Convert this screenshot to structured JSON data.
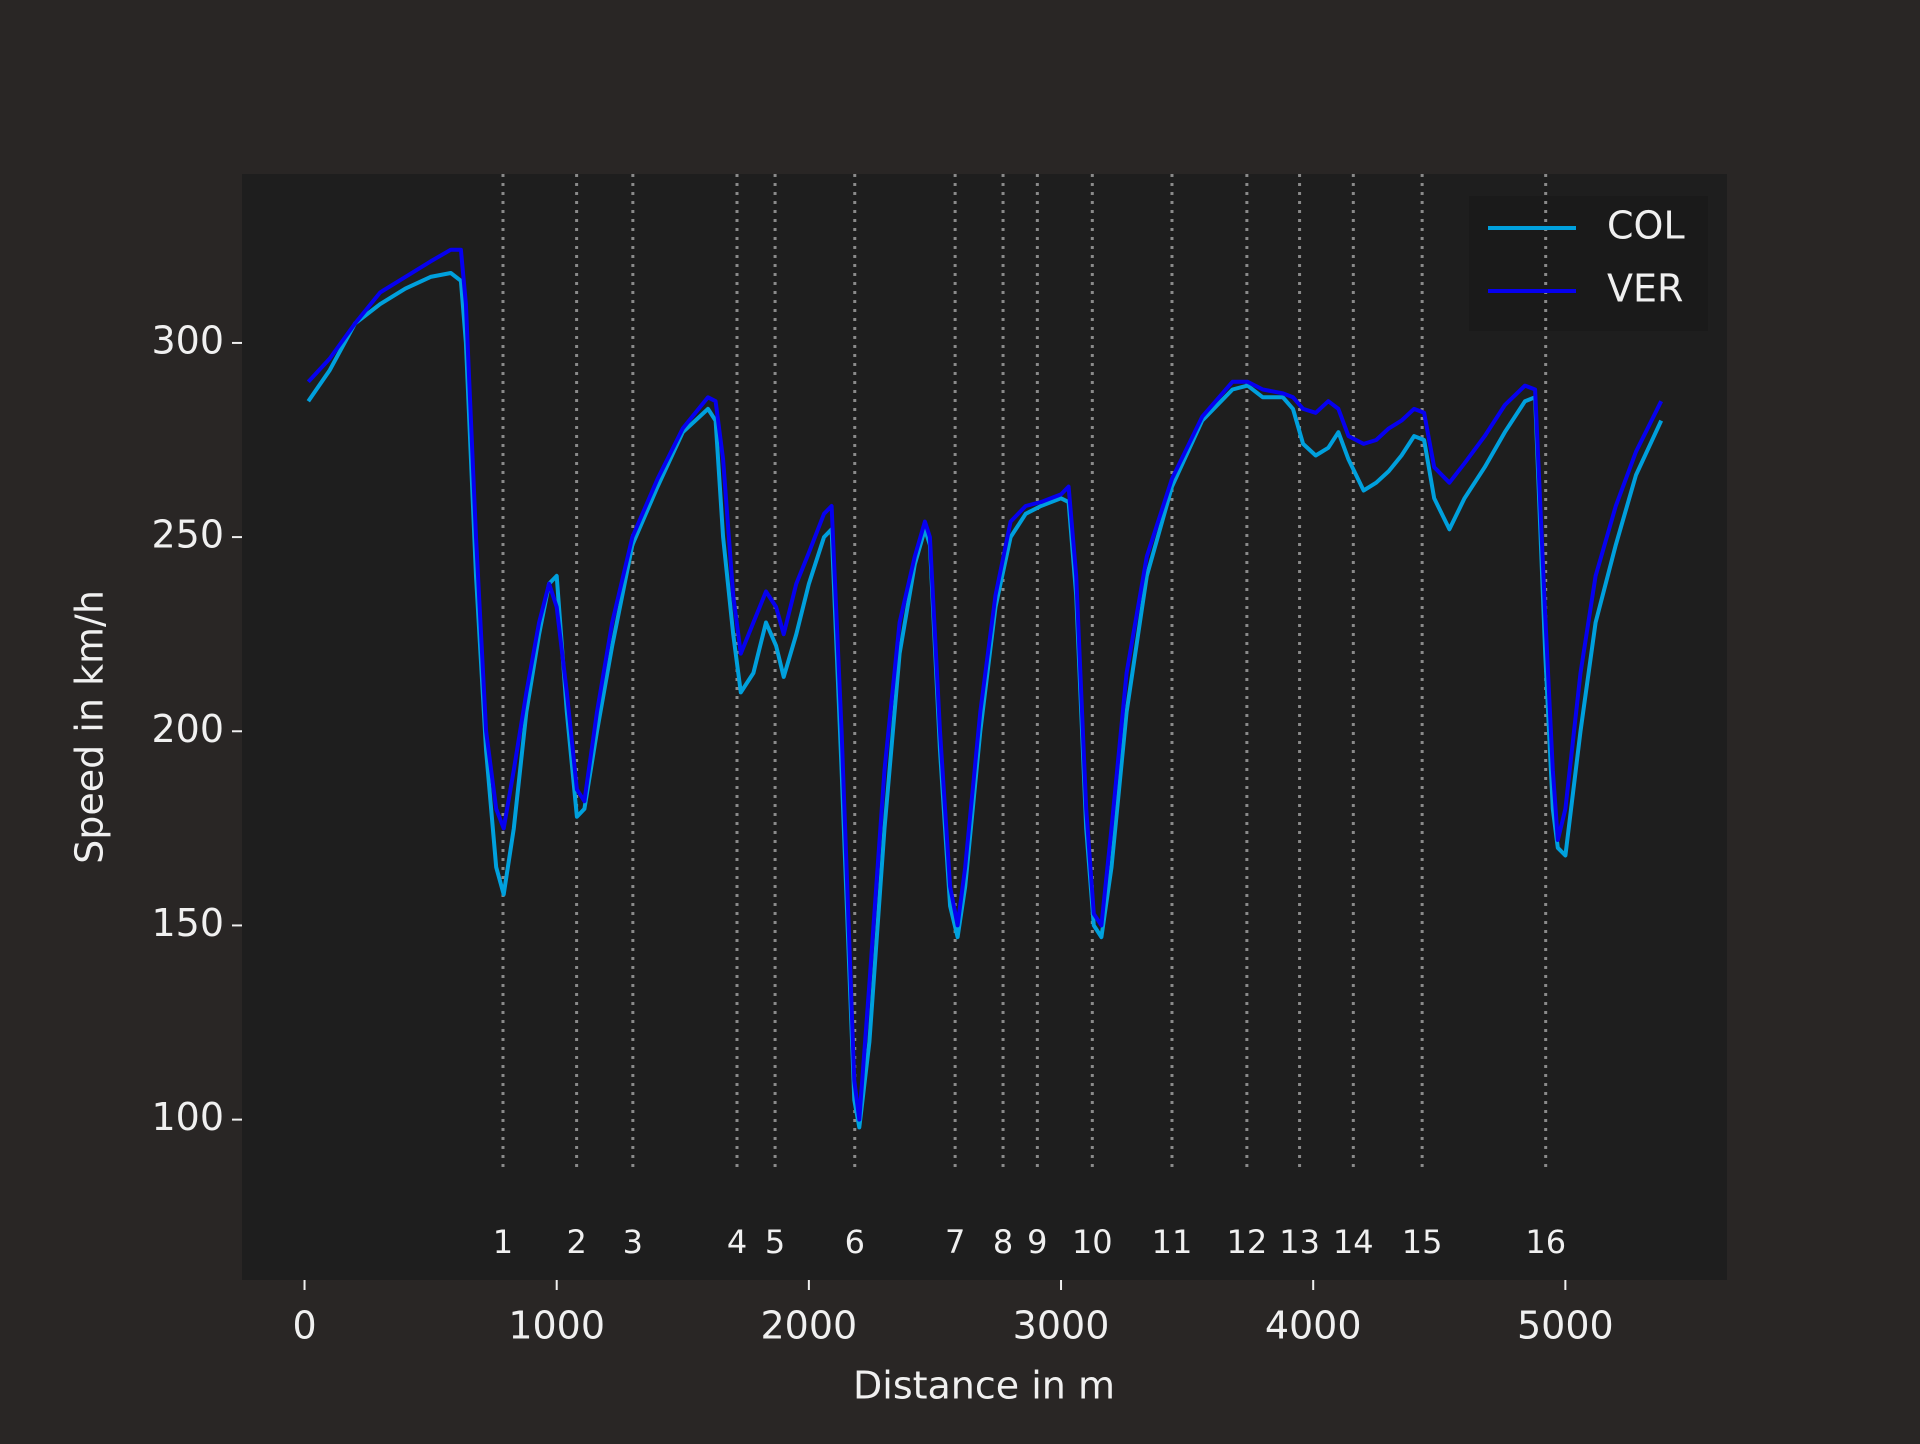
{
  "chart_data": {
    "type": "line",
    "xlabel": "Distance in m",
    "ylabel": "Speed in km/h",
    "xlim": [
      -248,
      5641
    ],
    "ylim": [
      58.7,
      343.5
    ],
    "xticks": [
      0,
      1000,
      2000,
      3000,
      4000,
      5000
    ],
    "yticks": [
      100,
      150,
      200,
      250,
      300
    ],
    "grid": false,
    "legend": "upper right",
    "x": [
      15,
      100,
      200,
      300,
      400,
      500,
      580,
      620,
      640,
      680,
      720,
      760,
      790,
      830,
      880,
      930,
      970,
      1000,
      1040,
      1080,
      1110,
      1160,
      1220,
      1300,
      1400,
      1500,
      1600,
      1630,
      1660,
      1700,
      1730,
      1780,
      1830,
      1870,
      1900,
      1950,
      2000,
      2060,
      2090,
      2130,
      2180,
      2200,
      2240,
      2300,
      2360,
      2420,
      2460,
      2480,
      2520,
      2560,
      2590,
      2620,
      2680,
      2740,
      2800,
      2860,
      2920,
      2960,
      3000,
      3030,
      3060,
      3100,
      3130,
      3160,
      3200,
      3260,
      3340,
      3440,
      3560,
      3680,
      3740,
      3800,
      3880,
      3920,
      3960,
      4010,
      4060,
      4100,
      4140,
      4200,
      4250,
      4300,
      4350,
      4400,
      4440,
      4480,
      4540,
      4600,
      4680,
      4760,
      4840,
      4880,
      4920,
      4950,
      4970,
      5000,
      5060,
      5120,
      5200,
      5280,
      5380
    ],
    "series": [
      {
        "name": "COL",
        "color": "#00a0dd",
        "values": [
          285,
          293,
          305,
          310,
          314,
          317,
          318,
          316,
          300,
          240,
          195,
          165,
          158,
          175,
          205,
          225,
          238,
          240,
          205,
          178,
          180,
          200,
          222,
          248,
          263,
          277,
          283,
          280,
          250,
          225,
          210,
          215,
          228,
          222,
          214,
          225,
          238,
          250,
          252,
          190,
          105,
          98,
          120,
          175,
          220,
          243,
          252,
          248,
          195,
          155,
          147,
          160,
          200,
          232,
          250,
          256,
          258,
          259,
          260,
          259,
          235,
          175,
          150,
          147,
          165,
          205,
          240,
          263,
          280,
          288,
          289,
          286,
          286,
          283,
          274,
          271,
          273,
          277,
          270,
          262,
          264,
          267,
          271,
          276,
          275,
          260,
          252,
          260,
          268,
          277,
          285,
          286,
          220,
          180,
          170,
          168,
          200,
          228,
          248,
          266,
          280
        ]
      },
      {
        "name": "VER",
        "color": "#0600ef",
        "values": [
          290,
          296,
          305,
          313,
          317,
          321,
          324,
          324,
          310,
          250,
          200,
          180,
          175,
          190,
          210,
          228,
          238,
          232,
          210,
          185,
          182,
          205,
          228,
          250,
          265,
          278,
          286,
          285,
          270,
          235,
          220,
          228,
          236,
          232,
          225,
          238,
          246,
          256,
          258,
          200,
          110,
          100,
          135,
          190,
          228,
          245,
          254,
          250,
          200,
          160,
          150,
          165,
          205,
          235,
          254,
          258,
          259,
          260,
          261,
          263,
          240,
          180,
          153,
          150,
          175,
          215,
          245,
          265,
          281,
          290,
          290,
          288,
          287,
          286,
          283,
          282,
          285,
          283,
          276,
          274,
          275,
          278,
          280,
          283,
          282,
          268,
          264,
          269,
          276,
          284,
          289,
          288,
          230,
          190,
          172,
          180,
          215,
          240,
          258,
          272,
          285
        ]
      }
    ],
    "corners": {
      "color": "#8a8a8a",
      "numbers": [
        1,
        2,
        3,
        4,
        5,
        6,
        7,
        8,
        9,
        10,
        11,
        12,
        13,
        14,
        15,
        16
      ],
      "distances": [
        787,
        1079,
        1302,
        1715,
        1866,
        2182,
        2580,
        2770,
        2906,
        3124,
        3440,
        3737,
        3946,
        4159,
        4432,
        4922
      ]
    }
  }
}
